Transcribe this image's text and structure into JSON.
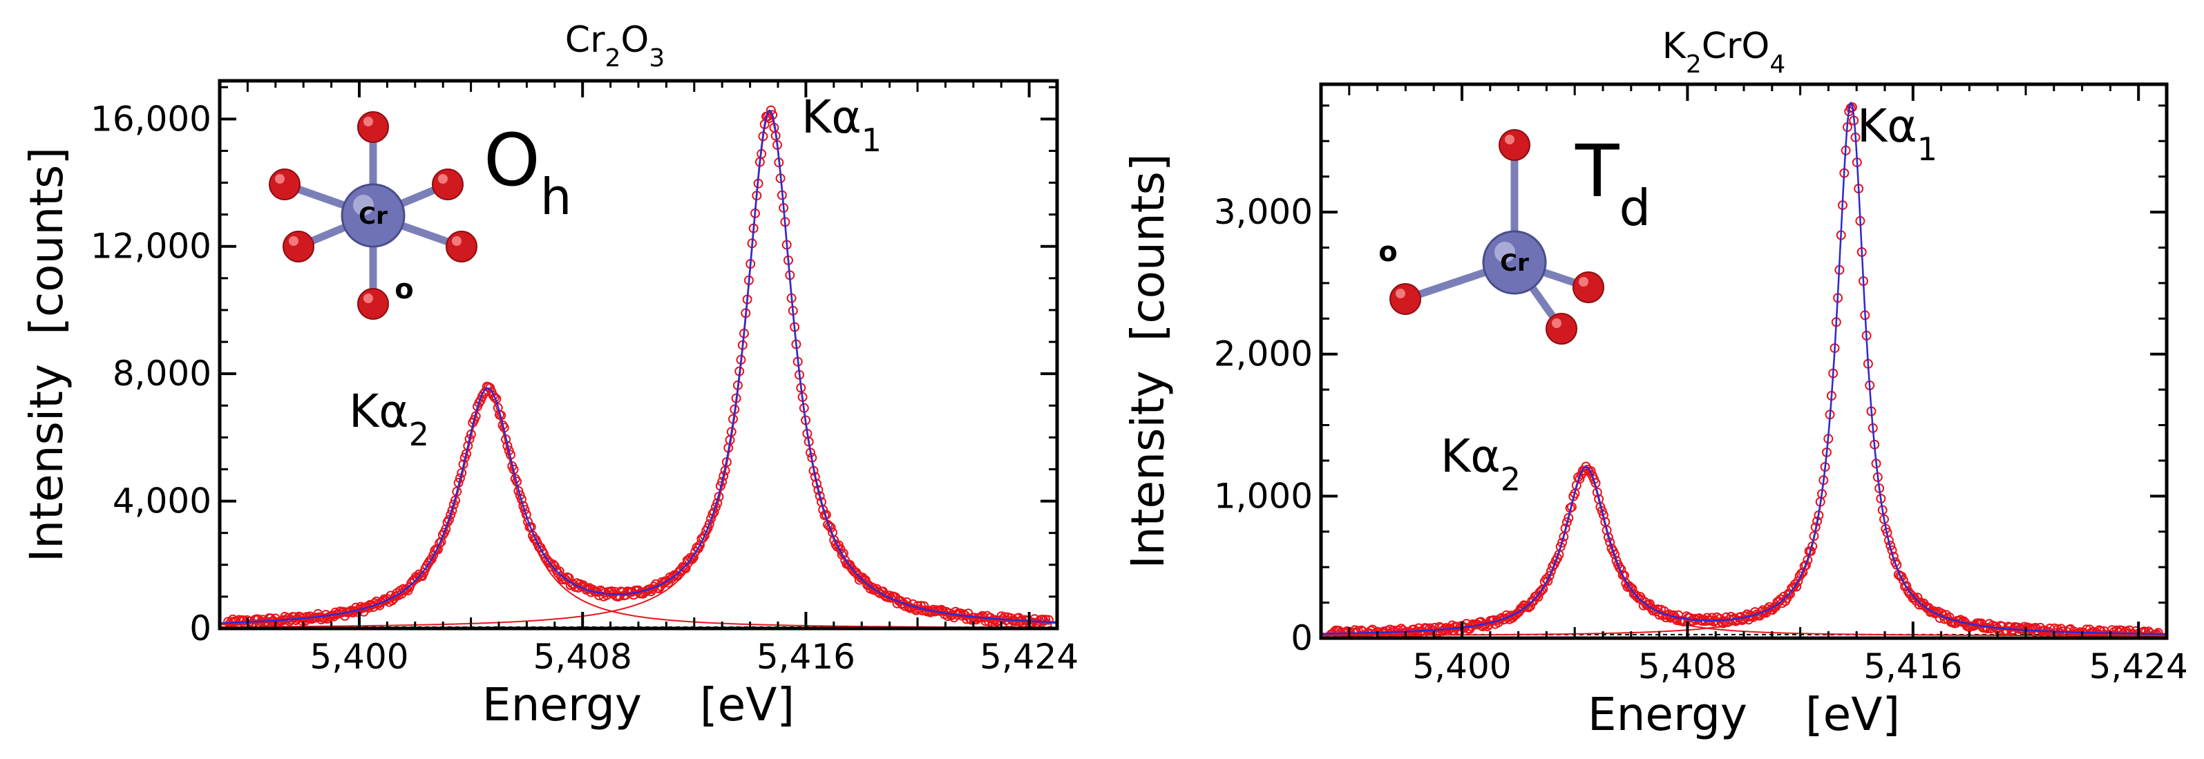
{
  "chart_data": [
    {
      "type": "scatter",
      "title_main": "Cr",
      "title_parts": [
        {
          "t": "Cr",
          "sub": false
        },
        {
          "t": "2",
          "sub": true
        },
        {
          "t": "O",
          "sub": false
        },
        {
          "t": "3",
          "sub": true
        }
      ],
      "xlabel": "Energy    [eV]",
      "ylabel": "Intensity  [counts]",
      "xlim": [
        5395,
        5425
      ],
      "ylim": [
        0,
        17200
      ],
      "xticks": [
        5400,
        5408,
        5416,
        5424
      ],
      "xtick_labels": [
        "5,400",
        "5,408",
        "5,416",
        "5,424"
      ],
      "yticks": [
        0,
        4000,
        8000,
        12000,
        16000
      ],
      "ytick_labels": [
        "0",
        "4,000",
        "8,000",
        "12,000",
        "16,000"
      ],
      "baseline": 0,
      "peaks": [
        {
          "name": "Kα1",
          "label_main": "Kα",
          "label_sub": "1",
          "center": 5414.7,
          "amplitude": 16400,
          "gamma": 1.05
        },
        {
          "name": "Kα2",
          "label_main": "Kα",
          "label_sub": "2",
          "center": 5404.6,
          "amplitude": 7600,
          "gamma": 1.25
        }
      ],
      "symmetry_label": {
        "main": "O",
        "sub": "h"
      },
      "structure": {
        "center_atom": "Cr",
        "ligand_atom": "o",
        "geometry": "octahedral"
      },
      "series": [
        {
          "name": "measured",
          "style": "open red circles"
        },
        {
          "name": "total fit",
          "style": "blue line"
        },
        {
          "name": "component fits",
          "style": "red lines"
        }
      ]
    },
    {
      "type": "scatter",
      "title_main": "K",
      "title_parts": [
        {
          "t": "K",
          "sub": false
        },
        {
          "t": "2",
          "sub": true
        },
        {
          "t": "CrO",
          "sub": false
        },
        {
          "t": "4",
          "sub": true
        }
      ],
      "xlabel": "Energy    [eV]",
      "ylabel": "Intensity  [counts]",
      "xlim": [
        5395,
        5425
      ],
      "ylim": [
        0,
        3900
      ],
      "xticks": [
        5400,
        5408,
        5416,
        5424
      ],
      "xtick_labels": [
        "5,400",
        "5,408",
        "5,416",
        "5,424"
      ],
      "yticks": [
        0,
        1000,
        2000,
        3000
      ],
      "ytick_labels": [
        "0",
        "1,000",
        "2,000",
        "3,000"
      ],
      "baseline": 15,
      "peaks": [
        {
          "name": "Kα1",
          "label_main": "Kα",
          "label_sub": "1",
          "center": 5413.8,
          "amplitude": 3800,
          "gamma": 0.62
        },
        {
          "name": "Kα2",
          "label_main": "Kα",
          "label_sub": "2",
          "center": 5404.4,
          "amplitude": 1210,
          "gamma": 0.95
        }
      ],
      "symmetry_label": {
        "main": "T",
        "sub": "d"
      },
      "structure": {
        "center_atom": "Cr",
        "ligand_atom": "o",
        "geometry": "tetrahedral"
      },
      "series": [
        {
          "name": "measured",
          "style": "open red circles"
        },
        {
          "name": "total fit",
          "style": "blue line"
        },
        {
          "name": "component fits",
          "style": "red lines"
        }
      ]
    }
  ]
}
